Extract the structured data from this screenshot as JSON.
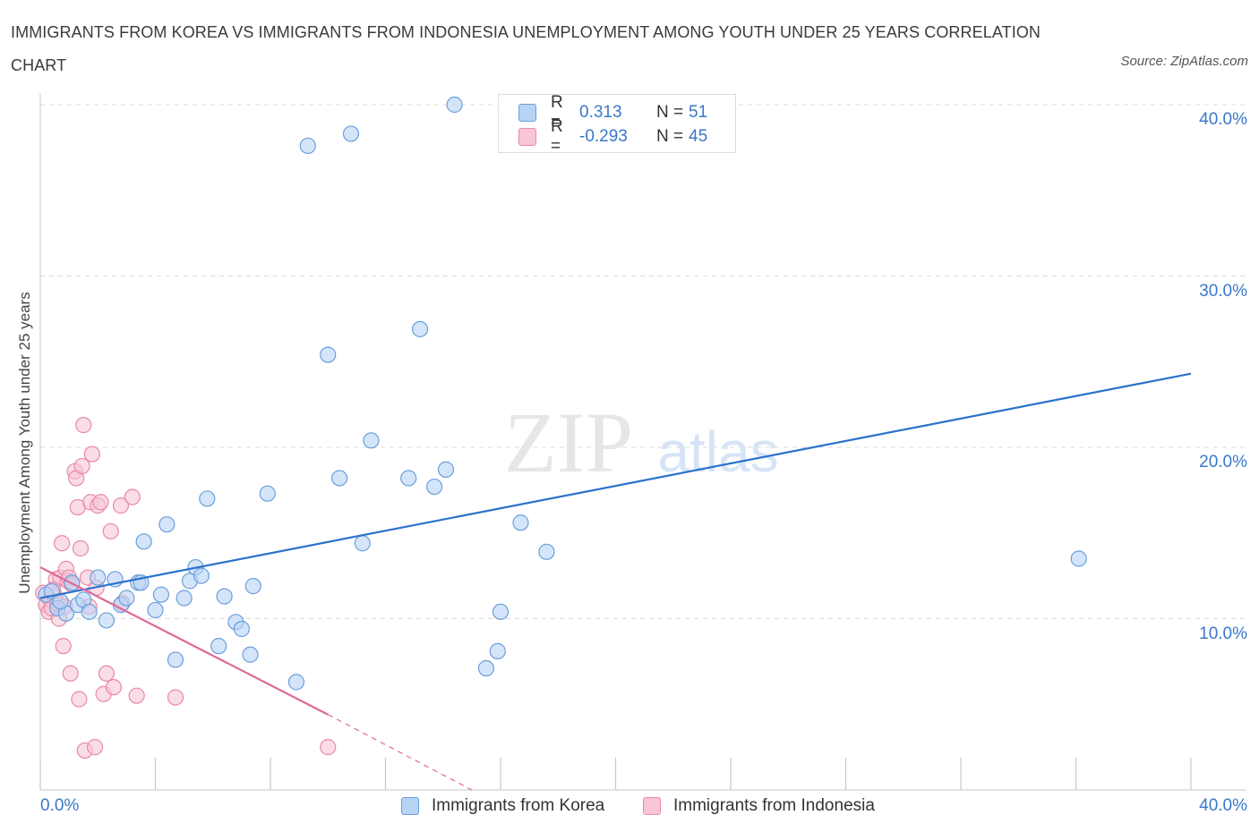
{
  "header": {
    "title": "IMMIGRANTS FROM KOREA VS IMMIGRANTS FROM INDONESIA UNEMPLOYMENT AMONG YOUTH UNDER 25 YEARS CORRELATION CHART",
    "source": "Source: ZipAtlas.com"
  },
  "legend": {
    "korea": {
      "r_label": "R =",
      "r_value": "0.313",
      "n_label": "N =",
      "n_value": "51"
    },
    "indonesia": {
      "r_label": "R =",
      "r_value": "-0.293",
      "n_label": "N =",
      "n_value": "45"
    }
  },
  "bottom_legend": {
    "korea": "Immigrants from Korea",
    "indonesia": "Immigrants from Indonesia"
  },
  "watermark": {
    "zip": "ZIP",
    "atlas": "atlas"
  },
  "colors": {
    "korea_fill": "#b8d4f5",
    "korea_stroke": "#6a9fdc",
    "korea_line": "#2a72cc",
    "indonesia_fill": "#f9c6d6",
    "indonesia_stroke": "#e889a8",
    "indonesia_line": "#e0689a",
    "accent_text": "#3a78c9",
    "grid": "#d9d9d9"
  },
  "chart_data": {
    "type": "scatter",
    "title": "IMMIGRANTS FROM KOREA VS IMMIGRANTS FROM INDONESIA UNEMPLOYMENT AMONG YOUTH UNDER 25 YEARS CORRELATION CHART",
    "xlabel": "",
    "ylabel": "Unemployment Among Youth under 25 years",
    "xlim": [
      0,
      40
    ],
    "ylim": [
      0,
      40
    ],
    "x_ticks": [
      "0.0%",
      "40.0%"
    ],
    "y_ticks": [
      {
        "value": 10,
        "label": "10.0%"
      },
      {
        "value": 20,
        "label": "20.0%"
      },
      {
        "value": 30,
        "label": "30.0%"
      },
      {
        "value": 40,
        "label": "40.0%"
      }
    ],
    "grid": true,
    "series": [
      {
        "name": "Immigrants from Korea",
        "r": 0.313,
        "n": 51,
        "trend": {
          "x": [
            0.0,
            40.0
          ],
          "y": [
            11.2,
            24.3
          ],
          "dashed_to": null
        },
        "points": [
          [
            0.2,
            11.4
          ],
          [
            0.4,
            11.6
          ],
          [
            0.6,
            10.6
          ],
          [
            0.9,
            10.3
          ],
          [
            1.1,
            12.1
          ],
          [
            1.3,
            10.8
          ],
          [
            1.5,
            11.1
          ],
          [
            1.7,
            10.4
          ],
          [
            2.0,
            12.4
          ],
          [
            2.3,
            9.9
          ],
          [
            2.6,
            12.3
          ],
          [
            2.8,
            10.8
          ],
          [
            3.0,
            11.2
          ],
          [
            3.4,
            12.1
          ],
          [
            3.5,
            12.1
          ],
          [
            3.6,
            14.5
          ],
          [
            4.0,
            10.5
          ],
          [
            4.2,
            11.4
          ],
          [
            4.4,
            15.5
          ],
          [
            4.7,
            7.6
          ],
          [
            5.0,
            11.2
          ],
          [
            5.2,
            12.2
          ],
          [
            5.4,
            13.0
          ],
          [
            5.6,
            12.5
          ],
          [
            5.8,
            17.0
          ],
          [
            6.2,
            8.4
          ],
          [
            6.4,
            11.3
          ],
          [
            6.8,
            9.8
          ],
          [
            7.0,
            9.4
          ],
          [
            7.3,
            7.9
          ],
          [
            7.4,
            11.9
          ],
          [
            7.9,
            17.3
          ],
          [
            8.9,
            6.3
          ],
          [
            9.3,
            37.6
          ],
          [
            10.0,
            25.4
          ],
          [
            10.4,
            18.2
          ],
          [
            10.8,
            38.3
          ],
          [
            11.2,
            14.4
          ],
          [
            11.5,
            20.4
          ],
          [
            12.8,
            18.2
          ],
          [
            13.2,
            26.9
          ],
          [
            13.7,
            17.7
          ],
          [
            14.1,
            18.7
          ],
          [
            14.4,
            40.0
          ],
          [
            15.5,
            7.1
          ],
          [
            15.9,
            8.1
          ],
          [
            16.0,
            10.4
          ],
          [
            16.7,
            15.6
          ],
          [
            17.6,
            13.9
          ],
          [
            36.1,
            13.5
          ],
          [
            0.7,
            11.0
          ]
        ]
      },
      {
        "name": "Immigrants from Indonesia",
        "r": -0.293,
        "n": 45,
        "trend": {
          "x": [
            0.0,
            10.0
          ],
          "y": [
            13.0,
            4.4
          ],
          "dashed_to": [
            15.0,
            0.0
          ]
        },
        "points": [
          [
            0.1,
            11.5
          ],
          [
            0.2,
            10.8
          ],
          [
            0.3,
            10.4
          ],
          [
            0.35,
            11.1
          ],
          [
            0.4,
            10.6
          ],
          [
            0.5,
            11.3
          ],
          [
            0.55,
            12.3
          ],
          [
            0.6,
            10.9
          ],
          [
            0.65,
            10.0
          ],
          [
            0.7,
            12.4
          ],
          [
            0.75,
            14.4
          ],
          [
            0.8,
            8.4
          ],
          [
            0.85,
            10.7
          ],
          [
            0.9,
            12.9
          ],
          [
            0.95,
            12.2
          ],
          [
            1.0,
            12.4
          ],
          [
            1.05,
            6.8
          ],
          [
            1.1,
            12.0
          ],
          [
            1.2,
            18.6
          ],
          [
            1.25,
            18.2
          ],
          [
            1.3,
            16.5
          ],
          [
            1.35,
            5.3
          ],
          [
            1.4,
            14.1
          ],
          [
            1.45,
            18.9
          ],
          [
            1.5,
            21.3
          ],
          [
            1.55,
            2.3
          ],
          [
            1.65,
            12.4
          ],
          [
            1.7,
            10.7
          ],
          [
            1.75,
            16.8
          ],
          [
            1.8,
            19.6
          ],
          [
            1.9,
            2.5
          ],
          [
            1.95,
            11.8
          ],
          [
            2.0,
            16.6
          ],
          [
            2.1,
            16.8
          ],
          [
            2.2,
            5.6
          ],
          [
            2.3,
            6.8
          ],
          [
            2.45,
            15.1
          ],
          [
            2.55,
            6.0
          ],
          [
            2.8,
            16.6
          ],
          [
            2.85,
            10.9
          ],
          [
            3.2,
            17.1
          ],
          [
            3.35,
            5.5
          ],
          [
            4.7,
            5.4
          ],
          [
            10.0,
            2.5
          ],
          [
            0.45,
            11.7
          ]
        ]
      }
    ]
  }
}
